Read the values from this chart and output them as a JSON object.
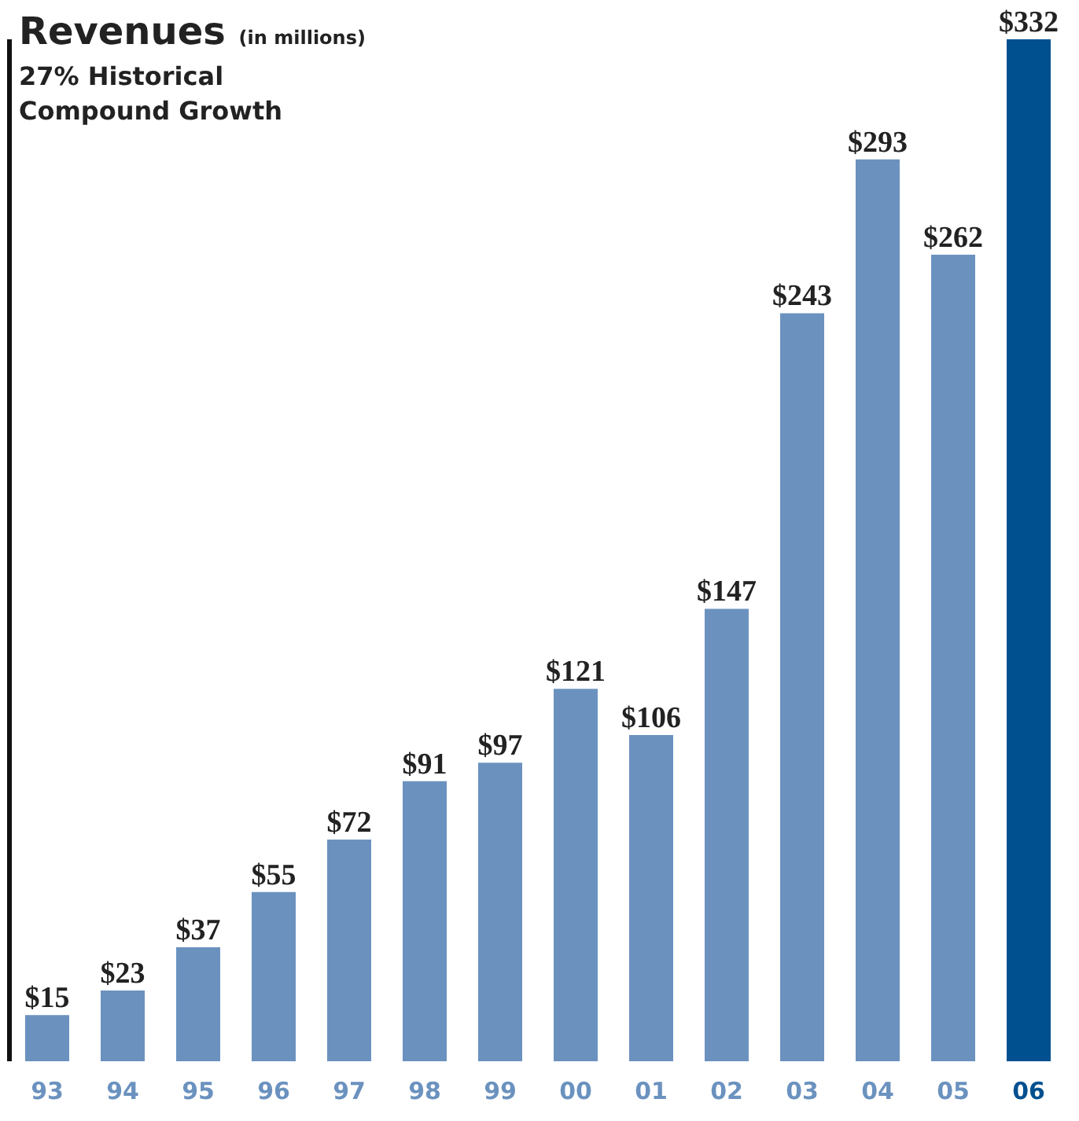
{
  "chart_data": {
    "type": "bar",
    "title": "Revenues (in millions)",
    "subtitle": "27% Historical Compound Growth",
    "categories": [
      "93",
      "94",
      "95",
      "96",
      "97",
      "98",
      "99",
      "00",
      "01",
      "02",
      "03",
      "04",
      "05",
      "06"
    ],
    "values": [
      15,
      23,
      37,
      55,
      72,
      91,
      97,
      121,
      106,
      147,
      243,
      293,
      262,
      332
    ],
    "colors": [
      "#6b92bf",
      "#6b92bf",
      "#6b92bf",
      "#6b92bf",
      "#6b92bf",
      "#6b92bf",
      "#6b92bf",
      "#6b92bf",
      "#6b92bf",
      "#6b92bf",
      "#6b92bf",
      "#6b92bf",
      "#6b92bf",
      "#00508f"
    ],
    "value_labels": [
      "$15",
      "$23",
      "$37",
      "$55",
      "$72",
      "$91",
      "$97",
      "$121",
      "$106",
      "$147",
      "$243",
      "$293",
      "$262",
      "$332"
    ],
    "grid": false,
    "legend": false
  }
}
